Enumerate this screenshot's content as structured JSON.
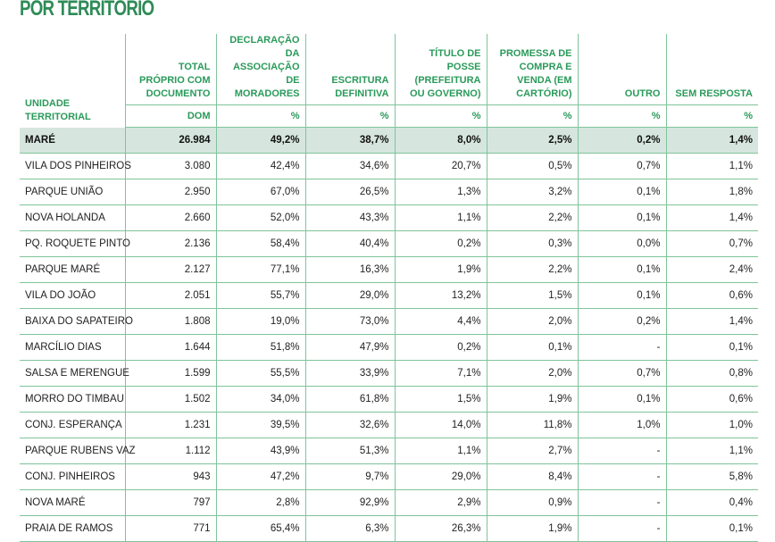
{
  "title": "POR TERRITÓRIO",
  "headers": {
    "unit": "UNIDADE TERRITORIAL",
    "cols": [
      "TOTAL PRÓPRIO COM DOCUMENTO",
      "DECLARAÇÃO DA ASSOCIAÇÃO DE MORADORES",
      "ESCRITURA DEFINITIVA",
      "TÍTULO DE POSSE (PREFEITURA OU GOVERNO)",
      "PROMESSA DE COMPRA E VENDA (EM CARTÓRIO)",
      "OUTRO",
      "SEM RESPOSTA"
    ],
    "units": [
      "DOM",
      "%",
      "%",
      "%",
      "%",
      "%",
      "%"
    ]
  },
  "total": [
    "MARÉ",
    "26.984",
    "49,2%",
    "38,7%",
    "8,0%",
    "2,5%",
    "0,2%",
    "1,4%"
  ],
  "rows": [
    [
      "VILA DOS PINHEIROS",
      "3.080",
      "42,4%",
      "34,6%",
      "20,7%",
      "0,5%",
      "0,7%",
      "1,1%"
    ],
    [
      "PARQUE UNIÃO",
      "2.950",
      "67,0%",
      "26,5%",
      "1,3%",
      "3,2%",
      "0,1%",
      "1,8%"
    ],
    [
      "NOVA HOLANDA",
      "2.660",
      "52,0%",
      "43,3%",
      "1,1%",
      "2,2%",
      "0,1%",
      "1,4%"
    ],
    [
      "PQ. ROQUETE PINTO",
      "2.136",
      "58,4%",
      "40,4%",
      "0,2%",
      "0,3%",
      "0,0%",
      "0,7%"
    ],
    [
      "PARQUE MARÉ",
      "2.127",
      "77,1%",
      "16,3%",
      "1,9%",
      "2,2%",
      "0,1%",
      "2,4%"
    ],
    [
      "VILA DO JOÃO",
      "2.051",
      "55,7%",
      "29,0%",
      "13,2%",
      "1,5%",
      "0,1%",
      "0,6%"
    ],
    [
      "BAIXA DO SAPATEIRO",
      "1.808",
      "19,0%",
      "73,0%",
      "4,4%",
      "2,0%",
      "0,2%",
      "1,4%"
    ],
    [
      "MARCÍLIO DIAS",
      "1.644",
      "51,8%",
      "47,9%",
      "0,2%",
      "0,1%",
      "-",
      "0,1%"
    ],
    [
      "SALSA E MERENGUE",
      "1.599",
      "55,5%",
      "33,9%",
      "7,1%",
      "2,0%",
      "0,7%",
      "0,8%"
    ],
    [
      "MORRO DO TIMBAU",
      "1.502",
      "34,0%",
      "61,8%",
      "1,5%",
      "1,9%",
      "0,1%",
      "0,6%"
    ],
    [
      "CONJ. ESPERANÇA",
      "1.231",
      "39,5%",
      "32,6%",
      "14,0%",
      "11,8%",
      "1,0%",
      "1,0%"
    ],
    [
      "PARQUE RUBENS VAZ",
      "1.112",
      "43,9%",
      "51,3%",
      "1,1%",
      "2,7%",
      "-",
      "1,1%"
    ],
    [
      "CONJ. PINHEIROS",
      "943",
      "47,2%",
      "9,7%",
      "29,0%",
      "8,4%",
      "-",
      "5,8%"
    ],
    [
      "NOVA MARÉ",
      "797",
      "2,8%",
      "92,9%",
      "2,9%",
      "0,9%",
      "-",
      "0,4%"
    ],
    [
      "PRAIA DE RAMOS",
      "771",
      "65,4%",
      "6,3%",
      "26,3%",
      "1,9%",
      "-",
      "0,1%"
    ]
  ]
}
